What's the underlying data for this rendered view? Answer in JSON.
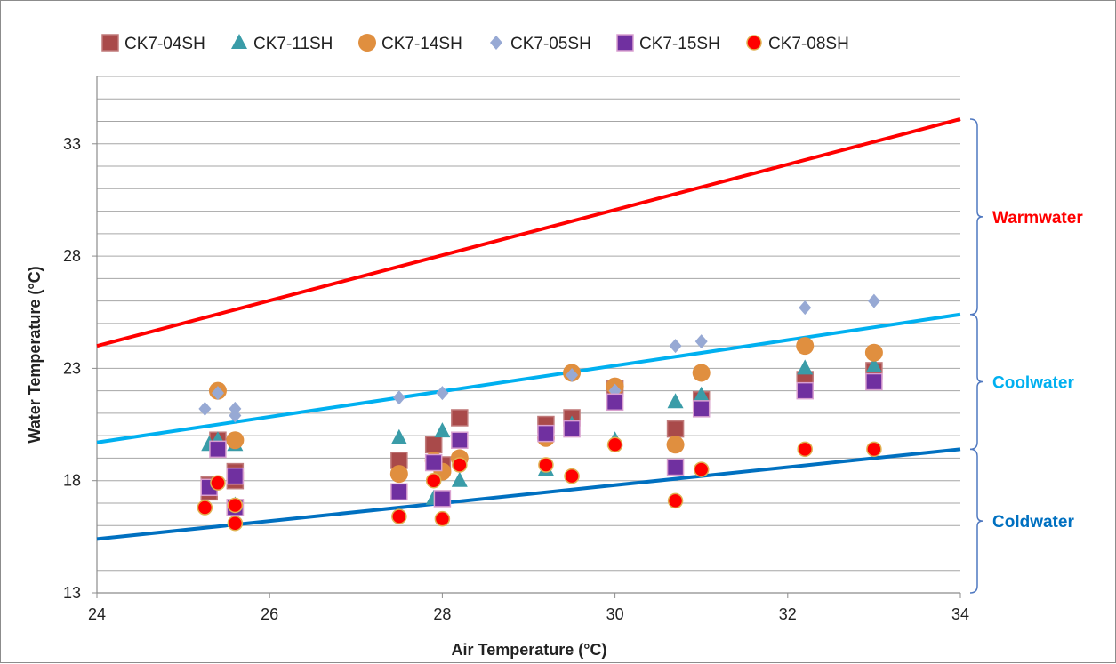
{
  "chart_data": {
    "type": "scatter",
    "xlabel": "Air Temperature (°C)",
    "ylabel": "Water Temperature (°C)",
    "xlim": [
      24,
      34
    ],
    "ylim": [
      13,
      36
    ],
    "x_ticks": [
      24,
      26,
      28,
      30,
      32,
      34
    ],
    "y_ticks": [
      13,
      18,
      23,
      28,
      33
    ],
    "grid": "horizontal",
    "legend_position": "top",
    "series": [
      {
        "name": "CK7-04SH",
        "marker": "square",
        "color": "#a94a4a",
        "points": [
          [
            25.3,
            17.5
          ],
          [
            25.3,
            17.8
          ],
          [
            25.4,
            19.8
          ],
          [
            25.6,
            18.4
          ],
          [
            25.6,
            18.0
          ],
          [
            25.6,
            16.8
          ],
          [
            27.5,
            18.9
          ],
          [
            27.9,
            19.6
          ],
          [
            28.0,
            18.7
          ],
          [
            28.2,
            20.8
          ],
          [
            29.2,
            20.5
          ],
          [
            29.5,
            20.8
          ],
          [
            30.0,
            22.1
          ],
          [
            30.7,
            20.3
          ],
          [
            31.0,
            21.6
          ],
          [
            32.2,
            22.5
          ],
          [
            33.0,
            22.9
          ]
        ]
      },
      {
        "name": "CK7-11SH",
        "marker": "triangle",
        "color": "#3a9ca8",
        "points": [
          [
            25.3,
            19.6
          ],
          [
            25.4,
            19.8
          ],
          [
            25.6,
            19.6
          ],
          [
            25.6,
            16.9
          ],
          [
            27.5,
            19.9
          ],
          [
            27.9,
            17.2
          ],
          [
            28.0,
            20.2
          ],
          [
            28.2,
            18.0
          ],
          [
            29.2,
            18.5
          ],
          [
            29.5,
            20.5
          ],
          [
            30.0,
            19.8
          ],
          [
            30.7,
            21.5
          ],
          [
            31.0,
            21.8
          ],
          [
            32.2,
            23.0
          ],
          [
            33.0,
            23.1
          ]
        ]
      },
      {
        "name": "CK7-14SH",
        "marker": "circle",
        "color": "#e08f3f",
        "points": [
          [
            25.4,
            22.0
          ],
          [
            25.6,
            19.8
          ],
          [
            27.5,
            18.3
          ],
          [
            27.9,
            18.9
          ],
          [
            28.0,
            18.4
          ],
          [
            28.2,
            19.0
          ],
          [
            29.2,
            19.9
          ],
          [
            29.5,
            22.8
          ],
          [
            30.0,
            22.2
          ],
          [
            30.7,
            19.6
          ],
          [
            31.0,
            22.8
          ],
          [
            32.2,
            24.0
          ],
          [
            33.0,
            23.7
          ]
        ]
      },
      {
        "name": "CK7-05SH",
        "marker": "diamond",
        "color": "#97a9d4",
        "points": [
          [
            25.25,
            21.2
          ],
          [
            25.4,
            21.9
          ],
          [
            25.6,
            21.2
          ],
          [
            25.6,
            20.9
          ],
          [
            27.5,
            21.7
          ],
          [
            28.0,
            21.9
          ],
          [
            29.5,
            22.7
          ],
          [
            30.0,
            22.0
          ],
          [
            30.7,
            24.0
          ],
          [
            31.0,
            24.2
          ],
          [
            32.2,
            25.7
          ],
          [
            33.0,
            26.0
          ]
        ]
      },
      {
        "name": "CK7-15SH",
        "marker": "square",
        "color": "#7030a0",
        "points": [
          [
            25.3,
            17.7
          ],
          [
            25.4,
            19.4
          ],
          [
            25.6,
            18.2
          ],
          [
            25.6,
            16.8
          ],
          [
            27.5,
            17.5
          ],
          [
            27.9,
            18.8
          ],
          [
            28.0,
            17.2
          ],
          [
            28.2,
            19.8
          ],
          [
            29.2,
            20.1
          ],
          [
            29.5,
            20.3
          ],
          [
            30.0,
            21.5
          ],
          [
            30.7,
            18.6
          ],
          [
            31.0,
            21.2
          ],
          [
            32.2,
            22.0
          ],
          [
            33.0,
            22.4
          ]
        ]
      },
      {
        "name": "CK7-08SH",
        "marker": "circle",
        "color": "#ff0000",
        "points": [
          [
            25.25,
            16.8
          ],
          [
            25.4,
            17.9
          ],
          [
            25.6,
            16.9
          ],
          [
            25.6,
            16.1
          ],
          [
            27.5,
            16.4
          ],
          [
            27.9,
            18.0
          ],
          [
            28.0,
            16.3
          ],
          [
            28.2,
            18.7
          ],
          [
            29.2,
            18.7
          ],
          [
            29.5,
            18.2
          ],
          [
            30.0,
            19.6
          ],
          [
            30.7,
            17.1
          ],
          [
            31.0,
            18.5
          ],
          [
            32.2,
            19.4
          ],
          [
            33.0,
            19.4
          ]
        ]
      }
    ],
    "reference_lines": [
      {
        "color": "#ff0000",
        "from": [
          24,
          24.0
        ],
        "to": [
          34,
          34.1
        ]
      },
      {
        "color": "#00b0f0",
        "from": [
          24,
          19.7
        ],
        "to": [
          34,
          25.4
        ]
      },
      {
        "color": "#0070c0",
        "from": [
          24,
          15.4
        ],
        "to": [
          34,
          19.4
        ]
      }
    ],
    "zones": [
      {
        "label": "Warmwater",
        "color": "#ff0000",
        "range": [
          25.4,
          34.1
        ]
      },
      {
        "label": "Coolwater",
        "color": "#00b0f0",
        "range": [
          19.4,
          25.4
        ]
      },
      {
        "label": "Coldwater",
        "color": "#0070c0",
        "range": [
          13,
          19.4
        ]
      }
    ],
    "bracket_color": "#4f78c0"
  }
}
